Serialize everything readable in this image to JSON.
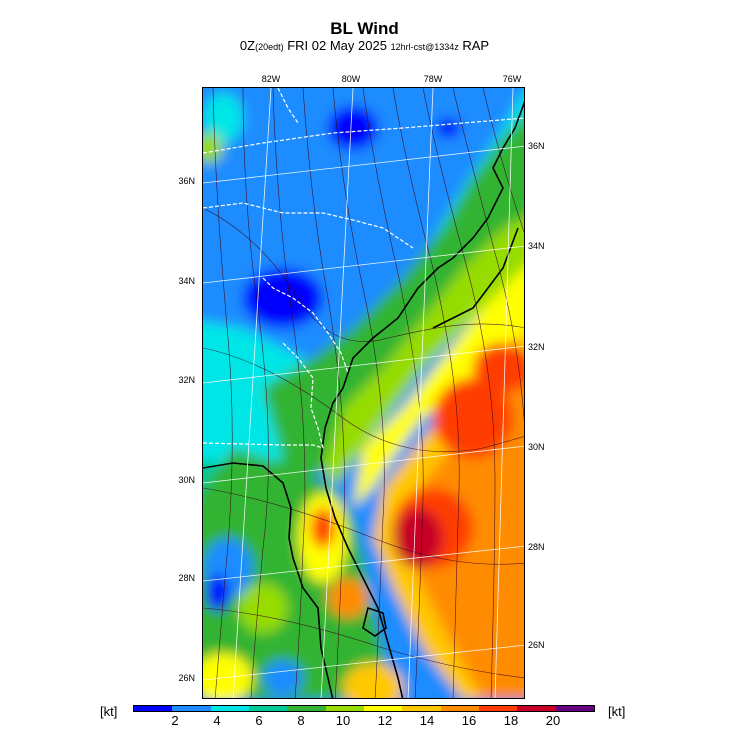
{
  "header": {
    "title": "BL Wind",
    "subtitle_main": "0Z",
    "subtitle_small1": "(20edt)",
    "subtitle_date": " FRI 02 May 2025 ",
    "subtitle_small2": "12hrl-cst@1334z",
    "subtitle_model": " RAP"
  },
  "map": {
    "lon_labels": [
      "82W",
      "80W",
      "78W",
      "76W"
    ],
    "lat_labels_left": [
      "36N",
      "34N",
      "32N",
      "30N",
      "28N",
      "26N"
    ],
    "lat_labels_right": [
      "36N",
      "34N",
      "32N",
      "30N",
      "28N",
      "26N"
    ]
  },
  "legend": {
    "unit_left": "[kt]",
    "unit_right": "[kt]",
    "ticks": [
      "2",
      "4",
      "6",
      "8",
      "10",
      "12",
      "14",
      "16",
      "18",
      "20"
    ],
    "colors": [
      "#0000ff",
      "#1e8cff",
      "#00e6e6",
      "#00c896",
      "#32b432",
      "#96dc00",
      "#ffff00",
      "#ffc800",
      "#ff8c00",
      "#ff3c00",
      "#c80028",
      "#640080"
    ]
  }
}
